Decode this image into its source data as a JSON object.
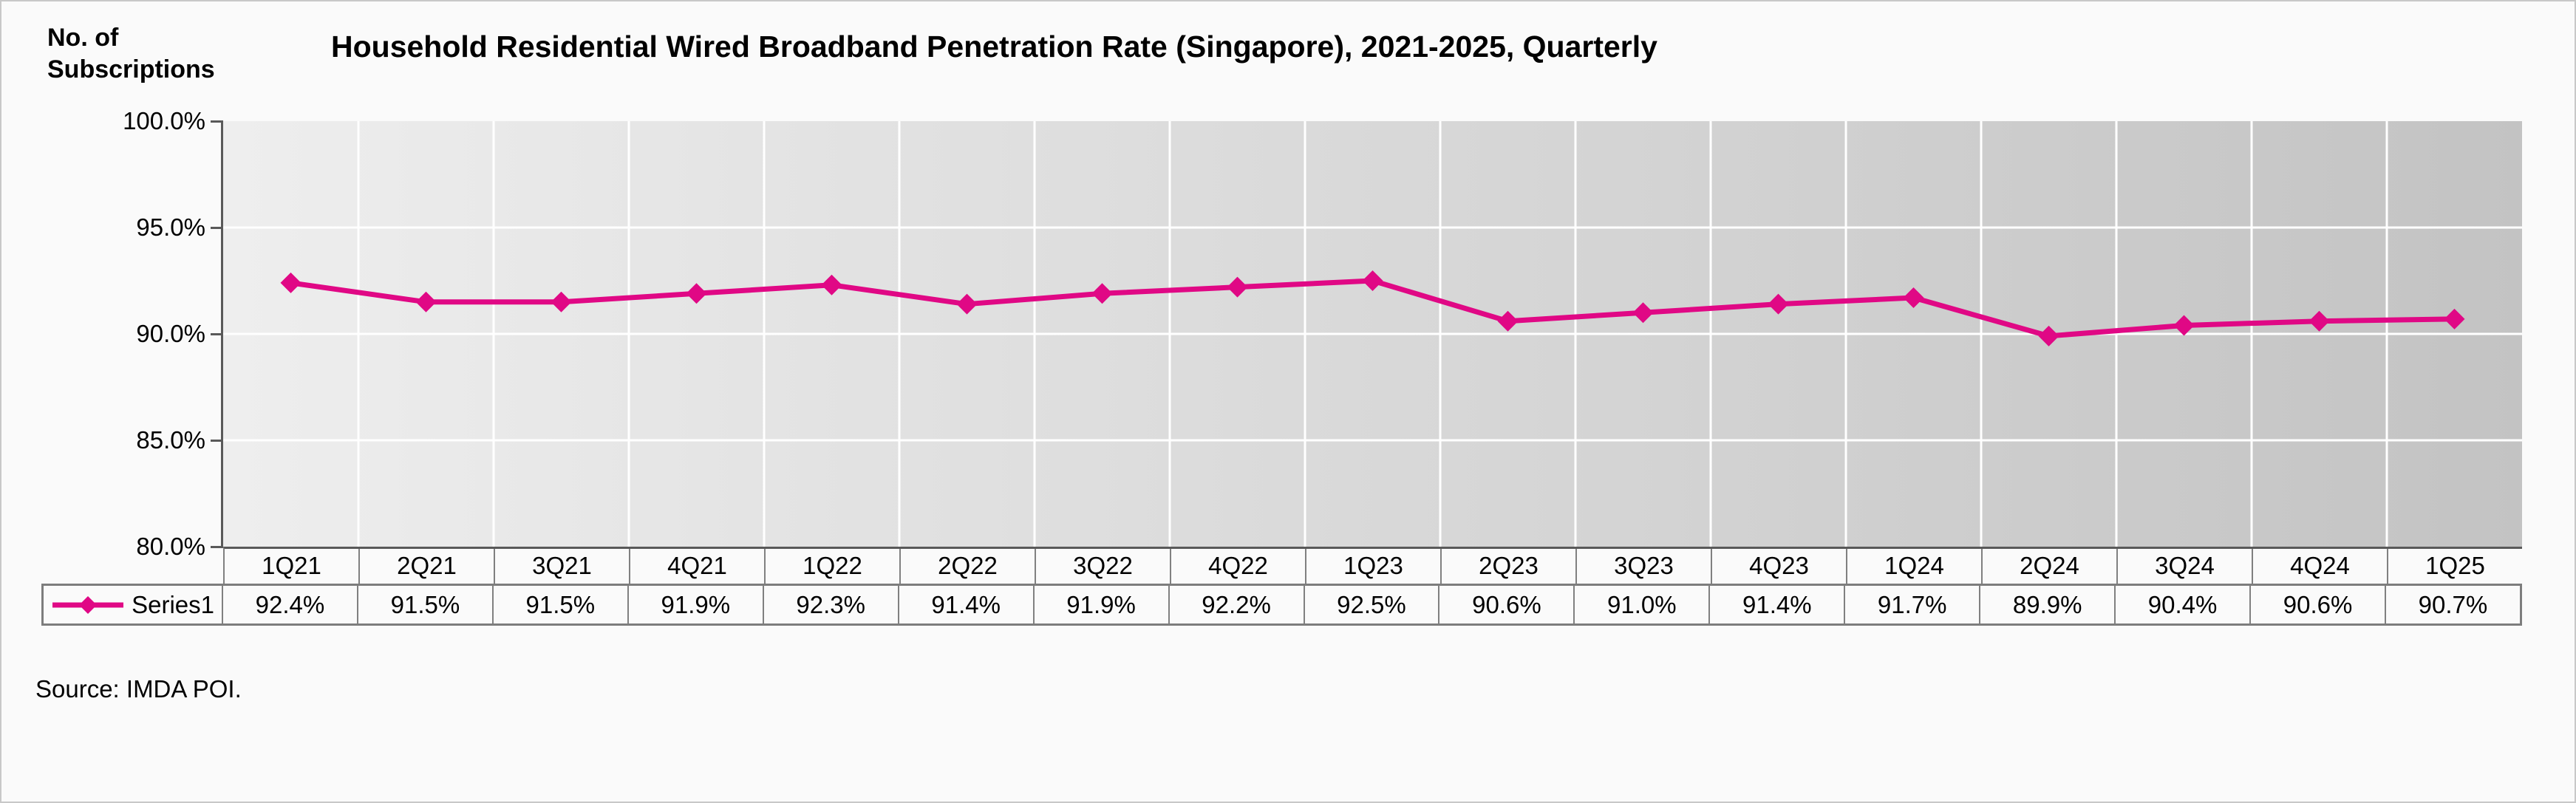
{
  "chart_data": {
    "type": "line",
    "title": "Household Residential Wired Broadband Penetration Rate (Singapore), 2021-2025, Quarterly",
    "ylabel": "No. of Subscriptions",
    "xlabel": "",
    "categories": [
      "1Q21",
      "2Q21",
      "3Q21",
      "4Q21",
      "1Q22",
      "2Q22",
      "3Q22",
      "4Q22",
      "1Q23",
      "2Q23",
      "3Q23",
      "4Q23",
      "1Q24",
      "2Q24",
      "3Q24",
      "4Q24",
      "1Q25"
    ],
    "series": [
      {
        "name": "Series1",
        "values": [
          92.4,
          91.5,
          91.5,
          91.9,
          92.3,
          91.4,
          91.9,
          92.2,
          92.5,
          90.6,
          91.0,
          91.4,
          91.7,
          89.9,
          90.4,
          90.6,
          90.7
        ],
        "display_values": [
          "92.4%",
          "91.5%",
          "91.5%",
          "91.9%",
          "92.3%",
          "91.4%",
          "91.9%",
          "92.2%",
          "92.5%",
          "90.6%",
          "91.0%",
          "91.4%",
          "91.7%",
          "89.9%",
          "90.4%",
          "90.6%",
          "90.7%"
        ],
        "color": "#E00885",
        "marker": "diamond"
      }
    ],
    "ylim": [
      80,
      100
    ],
    "y_ticks": [
      "100.0%",
      "95.0%",
      "90.0%",
      "85.0%",
      "80.0%"
    ],
    "grid": "white gridlines, horizontal and vertical",
    "legend_position": "data-table-left",
    "plot_background_gradient": [
      "#EEEEEE",
      "#C3C3C3"
    ],
    "axis_color": "#595959",
    "table_border_color": "#808080"
  },
  "source": "Source: IMDA POI."
}
